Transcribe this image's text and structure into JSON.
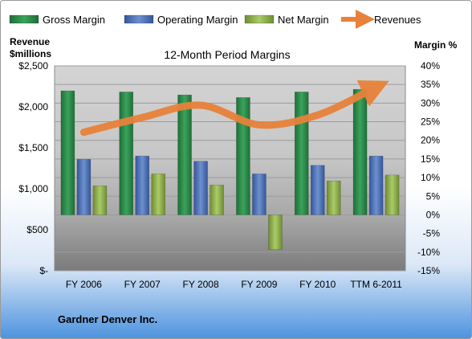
{
  "chart_data": {
    "type": "bar",
    "title": "12-Month Period Margins",
    "company": "Gardner Denver Inc.",
    "categories": [
      "FY 2006",
      "FY 2007",
      "FY 2008",
      "FY 2009",
      "FY 2010",
      "TTM 6-2011"
    ],
    "left_axis": {
      "label_line1": "Revenue",
      "label_line2": "$millions",
      "range": [
        0,
        2500
      ],
      "ticks": [
        "$-",
        "$500",
        "$1,000",
        "$1,500",
        "$2,000",
        "$2,500"
      ],
      "tick_values": [
        0,
        500,
        1000,
        1500,
        2000,
        2500
      ]
    },
    "right_axis": {
      "label": "Margin %",
      "range": [
        -15,
        40
      ],
      "ticks": [
        "-15%",
        "-10%",
        "-5%",
        "0%",
        "5%",
        "10%",
        "15%",
        "20%",
        "25%",
        "30%",
        "35%",
        "40%"
      ],
      "tick_values": [
        -15,
        -10,
        -5,
        0,
        5,
        10,
        15,
        20,
        25,
        30,
        35,
        40
      ]
    },
    "series": [
      {
        "name": "Gross Margin",
        "axis": "right",
        "kind": "bar",
        "color": "#2e8b4c",
        "values": [
          33.3,
          33.0,
          32.2,
          31.5,
          33.0,
          33.7
        ]
      },
      {
        "name": "Operating Margin",
        "axis": "right",
        "kind": "bar",
        "color": "#4a6fb3",
        "values": [
          14.9,
          15.8,
          14.4,
          11.0,
          13.3,
          15.8
        ]
      },
      {
        "name": "Net Margin",
        "axis": "right",
        "kind": "bar",
        "color": "#8fb04b",
        "values": [
          7.8,
          11.0,
          8.0,
          -9.3,
          9.1,
          10.7
        ]
      },
      {
        "name": "Revenues",
        "axis": "left",
        "kind": "line",
        "color": "#e8823a",
        "values": [
          1690,
          1870,
          2020,
          1780,
          1900,
          2240
        ]
      }
    ],
    "legend_position": "top",
    "grid": true
  }
}
